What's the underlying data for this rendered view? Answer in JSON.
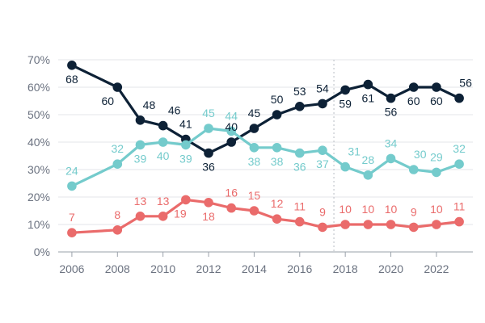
{
  "chart_data": {
    "type": "line",
    "title": "",
    "xlabel": "",
    "ylabel": "",
    "ylim": [
      0,
      70
    ],
    "yticks": [
      "0%",
      "10%",
      "20%",
      "30%",
      "40%",
      "50%",
      "60%",
      "70%"
    ],
    "xticks": [
      "2006",
      "2008",
      "2010",
      "2012",
      "2014",
      "2016",
      "2018",
      "2020",
      "2022"
    ],
    "x": [
      2006,
      2008,
      2009,
      2010,
      2011,
      2012,
      2013,
      2014,
      2015,
      2016,
      2017,
      2018,
      2019,
      2020,
      2021,
      2022,
      2023
    ],
    "reference_line_x": 2017.5,
    "series": [
      {
        "name": "dark-navy",
        "color": "#0d2136",
        "values": [
          68,
          60,
          48,
          46,
          41,
          36,
          40,
          45,
          50,
          53,
          54,
          59,
          61,
          56,
          60,
          60,
          56
        ],
        "labels": [
          "68",
          "60",
          "48",
          "46",
          "41",
          "36",
          "40",
          "45",
          "50",
          "53",
          "54",
          "59",
          "61",
          "56",
          "60",
          "60",
          "56"
        ]
      },
      {
        "name": "teal",
        "color": "#74cbcc",
        "values": [
          24,
          32,
          39,
          40,
          39,
          45,
          44,
          38,
          38,
          36,
          37,
          31,
          28,
          34,
          30,
          29,
          32
        ],
        "labels": [
          "24",
          "32",
          "39",
          "40",
          "39",
          "45",
          "44",
          "38",
          "38",
          "36",
          "37",
          "31",
          "28",
          "34",
          "30",
          "29",
          "32"
        ]
      },
      {
        "name": "coral",
        "color": "#ea6b6b",
        "values": [
          7,
          8,
          13,
          13,
          19,
          18,
          16,
          15,
          12,
          11,
          9,
          10,
          10,
          10,
          9,
          10,
          11
        ],
        "labels": [
          "7",
          "8",
          "13",
          "13",
          "19",
          "18",
          "16",
          "15",
          "12",
          "11",
          "9",
          "10",
          "10",
          "10",
          "9",
          "10",
          "11"
        ]
      }
    ]
  }
}
